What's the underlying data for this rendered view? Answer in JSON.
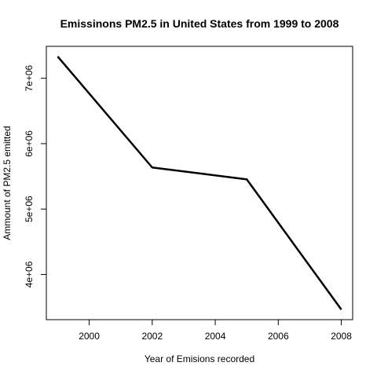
{
  "chart_data": {
    "type": "line",
    "title": "Emissinons PM2.5 in United States from 1999 to 2008",
    "xlabel": "Year of Emisions recorded",
    "ylabel": "Ammount of PM2.5 emitted",
    "x": [
      1999,
      2002,
      2005,
      2008
    ],
    "series": [
      {
        "values": [
          7332967,
          5635780,
          5454703,
          3464206
        ]
      }
    ],
    "xlim": [
      1998.64,
      2008.36
    ],
    "ylim": [
      3309056,
      7488117
    ],
    "x_ticks": [
      2000,
      2002,
      2004,
      2006,
      2008
    ],
    "x_tick_labels": [
      "2000",
      "2002",
      "2004",
      "2006",
      "2008"
    ],
    "y_ticks": [
      4000000,
      5000000,
      6000000,
      7000000
    ],
    "y_tick_labels": [
      "4e+06",
      "5e+06",
      "6e+06",
      "7e+06"
    ],
    "grid": false,
    "legend": "none",
    "line_color": "#000000"
  }
}
